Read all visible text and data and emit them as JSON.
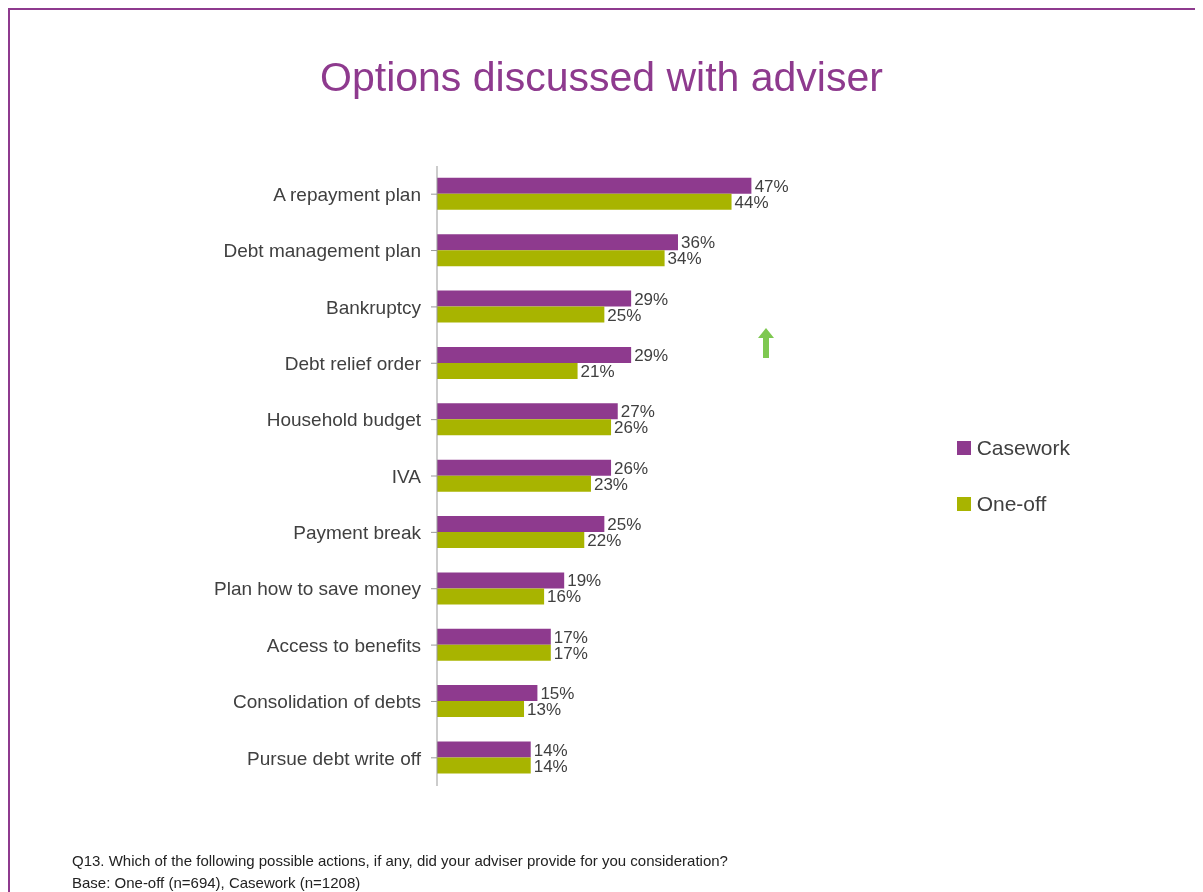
{
  "chart_data": {
    "type": "bar",
    "orientation": "horizontal",
    "title": "Options discussed with adviser",
    "categories": [
      "A repayment plan",
      "Debt management plan",
      "Bankruptcy",
      "Debt relief order",
      "Household budget",
      "IVA",
      "Payment break",
      "Plan how to save money",
      "Access to benefits",
      "Consolidation of debts",
      "Pursue debt write off"
    ],
    "series": [
      {
        "name": "Casework",
        "color": "#8e3a8e",
        "values": [
          47,
          36,
          29,
          29,
          27,
          26,
          25,
          19,
          17,
          15,
          14
        ],
        "value_labels": [
          "47%",
          "36%",
          "29%",
          "29%",
          "27%",
          "26%",
          "25%",
          "19%",
          "17%",
          "15%",
          "14%"
        ]
      },
      {
        "name": "One-off",
        "color": "#a8b400",
        "values": [
          44,
          34,
          25,
          21,
          26,
          23,
          22,
          16,
          17,
          13,
          14
        ],
        "value_labels": [
          "44%",
          "34%",
          "25%",
          "21%",
          "26%",
          "23%",
          "22%",
          "16%",
          "17%",
          "13%",
          "14%"
        ]
      }
    ],
    "tick_labels": "y",
    "grid": false,
    "legend": "right",
    "annotations": [
      "Q13. Which of the following possible actions, if any, did your adviser provide for you consideration?",
      "Base: One-off (n=694), Casework (n=1208)"
    ]
  }
}
